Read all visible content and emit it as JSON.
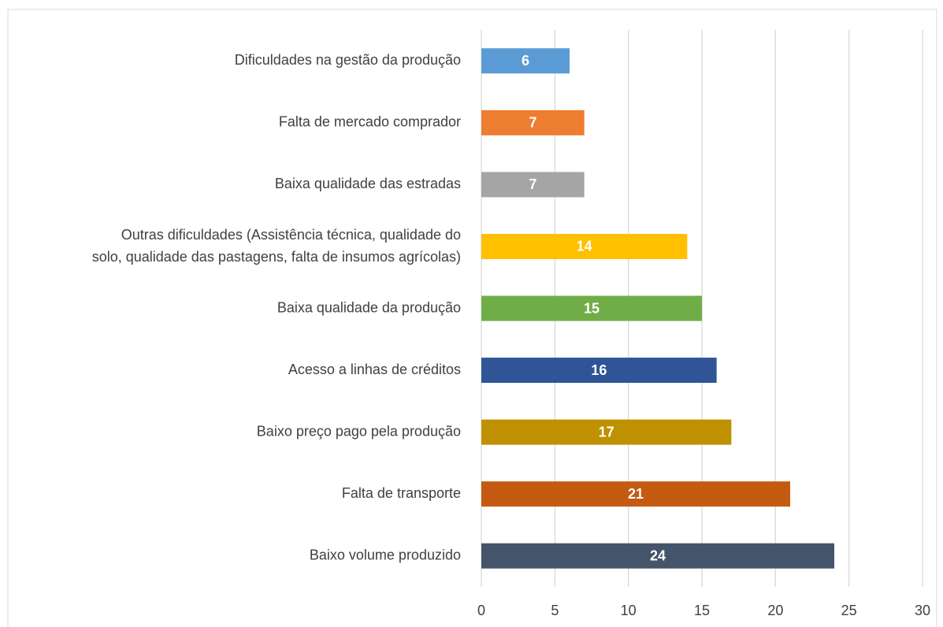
{
  "chart_data": {
    "type": "bar",
    "orientation": "horizontal",
    "categories": [
      "Dificuldades na gestão da produção",
      "Falta de mercado comprador",
      "Baixa qualidade das estradas",
      "Outras dificuldades (Assistência técnica, qualidade do\nsolo, qualidade das pastagens, falta de insumos agrícolas)",
      "Baixa qualidade da produção",
      "Acesso a linhas de créditos",
      "Baixo preço pago pela produção",
      "Falta de transporte",
      "Baixo volume produzido"
    ],
    "values": [
      6,
      7,
      7,
      14,
      15,
      16,
      17,
      21,
      24
    ],
    "colors": [
      "#5b9bd5",
      "#ed7d31",
      "#a5a5a5",
      "#ffc000",
      "#70ad47",
      "#2f5597",
      "#bf9000",
      "#c55a11",
      "#44546a"
    ],
    "xlim": [
      0,
      30
    ],
    "xticks": [
      0,
      5,
      10,
      15,
      20,
      25,
      30
    ],
    "grid": true
  }
}
